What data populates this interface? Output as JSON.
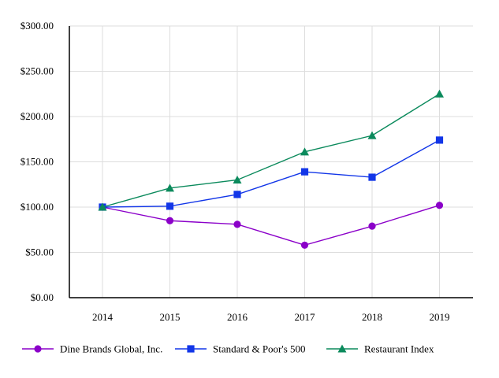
{
  "chart_data": {
    "type": "line",
    "categories": [
      "2014",
      "2015",
      "2016",
      "2017",
      "2018",
      "2019"
    ],
    "y_ticks": [
      "$0.00",
      "$50.00",
      "$100.00",
      "$150.00",
      "$200.00",
      "$250.00",
      "$300.00"
    ],
    "ylim": [
      0,
      300
    ],
    "grid": true,
    "legend_position": "bottom",
    "series": [
      {
        "name": "Dine Brands Global, Inc.",
        "marker": "circle",
        "color": "#8B00C9",
        "values": [
          100,
          85,
          81,
          58,
          79,
          102
        ]
      },
      {
        "name": "Standard & Poor's 500",
        "marker": "square",
        "color": "#1236E8",
        "values": [
          100,
          101,
          114,
          139,
          133,
          174
        ]
      },
      {
        "name": "Restaurant Index",
        "marker": "triangle",
        "color": "#0B8A5C",
        "values": [
          100,
          121,
          130,
          161,
          179,
          225
        ]
      }
    ]
  }
}
